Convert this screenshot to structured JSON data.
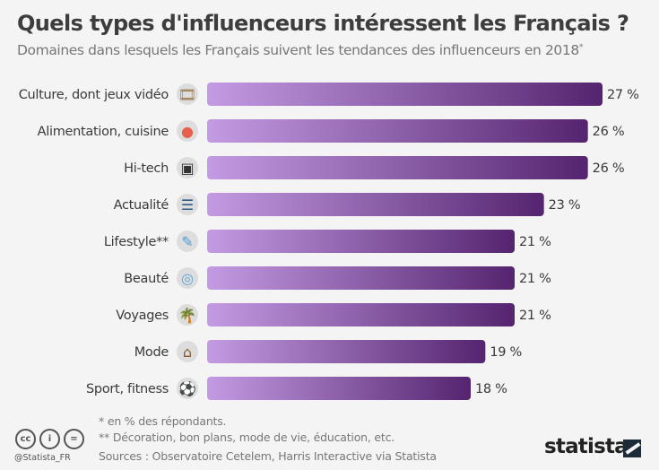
{
  "header": {
    "title": "Quels types d'influenceurs intéressent les Français ?",
    "subtitle": "Domaines dans lesquels les Français suivent les tendances des influenceurs en 2018",
    "subtitle_mark": "*"
  },
  "chart_data": {
    "type": "bar",
    "orientation": "horizontal",
    "title": "Quels types d'influenceurs intéressent les Français ?",
    "categories": [
      "Culture, dont jeux vidéo",
      "Alimentation, cuisine",
      "Hi-tech",
      "Actualité",
      "Lifestyle**",
      "Beauté",
      "Voyages",
      "Mode",
      "Sport, fitness"
    ],
    "values": [
      27,
      26,
      26,
      23,
      21,
      21,
      21,
      19,
      18
    ],
    "value_labels": [
      "27 %",
      "26 %",
      "26 %",
      "23 %",
      "21 %",
      "21 %",
      "21 %",
      "19 %",
      "18 %"
    ],
    "unit": "%",
    "xlim": [
      0,
      27
    ],
    "grid": false,
    "icons": [
      "film-reel-icon",
      "cooking-bowl-icon",
      "computer-icon",
      "newspaper-icon",
      "lifestyle-pencil-icon",
      "beauty-mirror-icon",
      "palm-island-icon",
      "hanger-icon",
      "soccer-ball-icon"
    ],
    "colors": {
      "gradient_start": "#c39be3",
      "gradient_end": "#552470"
    }
  },
  "footer": {
    "note1": "*   en % des répondants.",
    "note2": "** Décoration, bon plans, mode de vie, éducation, etc.",
    "sources": "Sources : Observatoire Cetelem, Harris Interactive via Statista",
    "handle": "@Statista_FR",
    "cc_labels": [
      "cc",
      "i",
      "="
    ],
    "logo": "statista"
  }
}
